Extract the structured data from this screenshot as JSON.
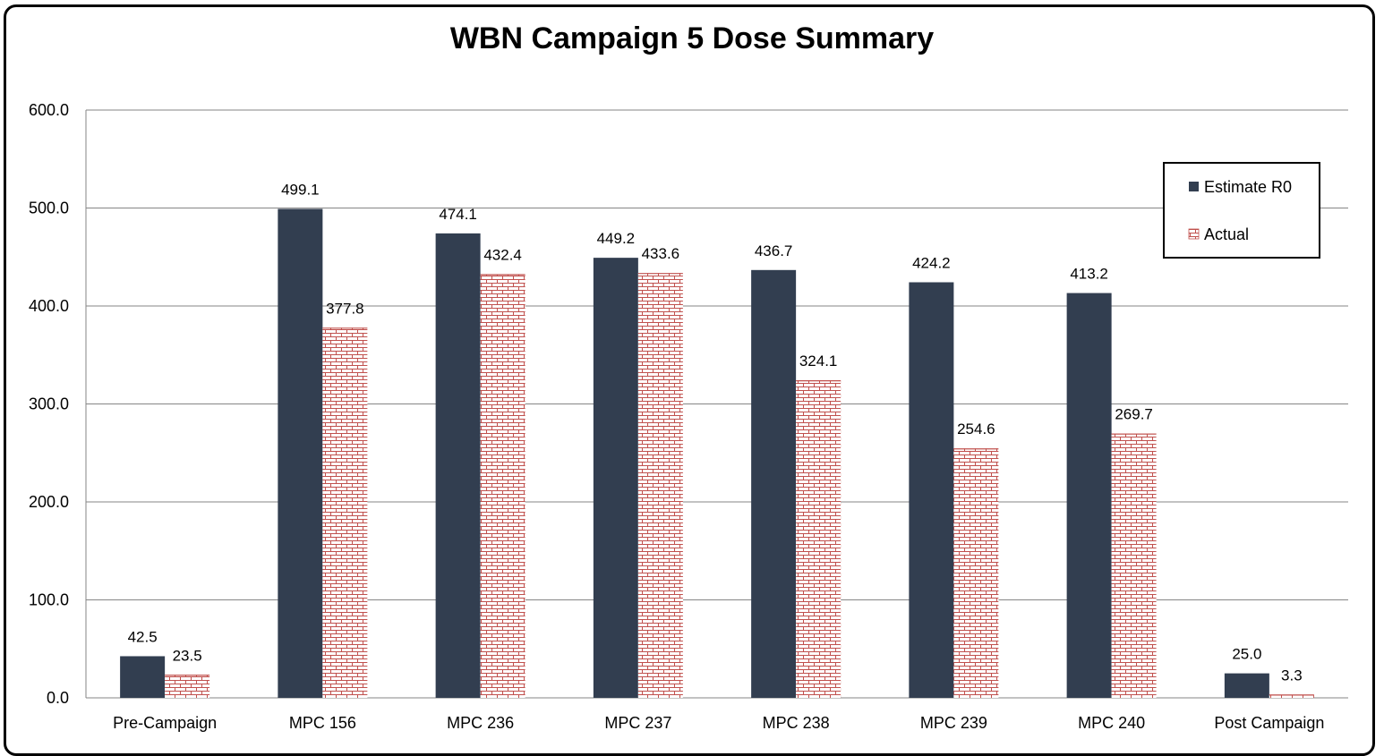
{
  "chart_data": {
    "type": "bar",
    "title": "WBN Campaign 5 Dose Summary",
    "xlabel": "",
    "ylabel": "",
    "ylim": [
      0,
      600
    ],
    "yticks": [
      "0.0",
      "100.0",
      "200.0",
      "300.0",
      "400.0",
      "500.0",
      "600.0"
    ],
    "grid": true,
    "legend_position": "top-right",
    "categories": [
      "Pre-Campaign",
      "MPC 156",
      "MPC 236",
      "MPC 237",
      "MPC 238",
      "MPC 239",
      "MPC 240",
      "Post Campaign"
    ],
    "series": [
      {
        "name": "Estimate R0",
        "color": "#323e50",
        "pattern": "solid",
        "values": [
          42.5,
          499.1,
          474.1,
          449.2,
          436.7,
          424.2,
          413.2,
          25.0
        ],
        "labels": [
          "42.5",
          "499.1",
          "474.1",
          "449.2",
          "436.7",
          "424.2",
          "413.2",
          "25.0"
        ]
      },
      {
        "name": "Actual",
        "color": "#c0504d",
        "pattern": "brick",
        "values": [
          23.5,
          377.8,
          432.4,
          433.6,
          324.1,
          254.6,
          269.7,
          3.3
        ],
        "labels": [
          "23.5",
          "377.8",
          "432.4",
          "433.6",
          "324.1",
          "254.6",
          "269.7",
          "3.3"
        ]
      }
    ]
  }
}
